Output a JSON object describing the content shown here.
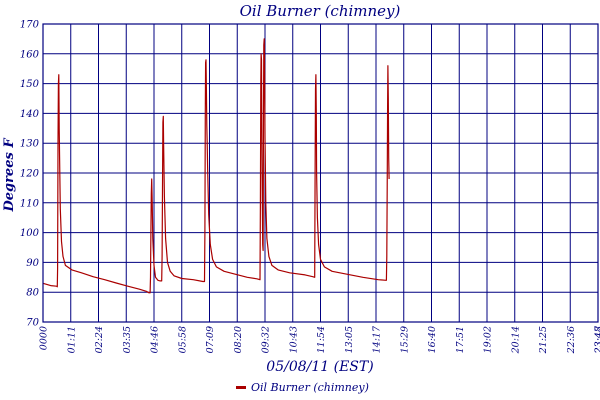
{
  "chart_data": {
    "type": "line",
    "title": "Oil Burner (chimney)",
    "xlabel": "05/08/11 (EST)",
    "ylabel": "Degrees F",
    "ylim": [
      70,
      170
    ],
    "yticks": [
      70,
      80,
      90,
      100,
      110,
      120,
      130,
      140,
      150,
      160,
      170
    ],
    "xlim": [
      0,
      1440
    ],
    "xtick_labels": [
      "0000",
      "01:11",
      "02:24",
      "03:35",
      "04:46",
      "05:58",
      "07:09",
      "08:20",
      "09:32",
      "10:43",
      "11:54",
      "13:05",
      "14:17",
      "15:29",
      "16:40",
      "17:51",
      "19:02",
      "20:14",
      "21:25",
      "22:36",
      "23:47",
      "23:48"
    ],
    "grid": true,
    "legend_position": "bottom-center",
    "color": "#aa0000",
    "series": [
      {
        "name": "Oil Burner (chimney)",
        "points": [
          [
            0,
            83
          ],
          [
            20,
            82.2
          ],
          [
            35,
            82
          ],
          [
            37,
            81.8
          ],
          [
            38,
            88
          ],
          [
            39,
            130
          ],
          [
            40,
            150
          ],
          [
            41,
            153
          ],
          [
            42,
            135
          ],
          [
            43,
            125
          ],
          [
            45,
            108
          ],
          [
            48,
            97
          ],
          [
            52,
            92
          ],
          [
            58,
            89
          ],
          [
            75,
            87.5
          ],
          [
            100,
            86.5
          ],
          [
            130,
            85.2
          ],
          [
            160,
            84.2
          ],
          [
            190,
            83.1
          ],
          [
            220,
            82
          ],
          [
            250,
            81
          ],
          [
            268,
            80.3
          ],
          [
            275,
            79.8
          ],
          [
            278,
            79.8
          ],
          [
            279,
            85
          ],
          [
            280,
            100
          ],
          [
            281,
            113
          ],
          [
            282,
            118
          ],
          [
            283,
            112
          ],
          [
            285,
            98
          ],
          [
            288,
            89
          ],
          [
            292,
            85
          ],
          [
            298,
            84
          ],
          [
            304,
            83.8
          ],
          [
            308,
            83.8
          ],
          [
            309,
            92
          ],
          [
            310,
            115
          ],
          [
            311,
            137
          ],
          [
            312,
            139
          ],
          [
            313,
            130
          ],
          [
            315,
            112
          ],
          [
            318,
            98
          ],
          [
            323,
            90
          ],
          [
            330,
            87
          ],
          [
            340,
            85.5
          ],
          [
            360,
            84.6
          ],
          [
            390,
            84.2
          ],
          [
            415,
            83.6
          ],
          [
            419,
            83.6
          ],
          [
            420,
            100
          ],
          [
            421,
            140
          ],
          [
            422,
            157
          ],
          [
            423,
            158
          ],
          [
            424,
            148
          ],
          [
            425,
            136
          ],
          [
            426,
            130
          ],
          [
            427,
            122
          ],
          [
            430,
            106
          ],
          [
            434,
            96
          ],
          [
            440,
            91
          ],
          [
            450,
            88.5
          ],
          [
            470,
            87
          ],
          [
            500,
            86
          ],
          [
            530,
            85
          ],
          [
            555,
            84.5
          ],
          [
            563,
            84.2
          ],
          [
            564,
            110
          ],
          [
            565,
            150
          ],
          [
            566,
            160
          ],
          [
            567,
            158
          ],
          [
            568,
            130
          ],
          [
            569,
            110
          ],
          [
            570,
            96
          ],
          [
            571,
            94
          ],
          [
            572,
            140
          ],
          [
            573,
            163
          ],
          [
            574,
            165
          ],
          [
            575,
            155
          ],
          [
            576,
            132
          ],
          [
            578,
            110
          ],
          [
            581,
            98
          ],
          [
            586,
            92
          ],
          [
            594,
            89
          ],
          [
            610,
            87.5
          ],
          [
            640,
            86.5
          ],
          [
            680,
            85.8
          ],
          [
            700,
            85.2
          ],
          [
            705,
            85
          ],
          [
            706,
            120
          ],
          [
            707,
            148
          ],
          [
            708,
            153
          ],
          [
            709,
            140
          ],
          [
            710,
            120
          ],
          [
            712,
            105
          ],
          [
            715,
            96
          ],
          [
            720,
            91
          ],
          [
            730,
            88.5
          ],
          [
            750,
            87
          ],
          [
            790,
            86
          ],
          [
            830,
            85
          ],
          [
            870,
            84.2
          ],
          [
            890,
            84
          ],
          [
            891,
            84
          ],
          [
            892,
            92
          ],
          [
            893,
            115
          ],
          [
            894,
            142
          ],
          [
            895,
            156
          ],
          [
            896,
            145
          ],
          [
            897,
            125
          ],
          [
            898,
            118
          ]
        ]
      }
    ]
  }
}
